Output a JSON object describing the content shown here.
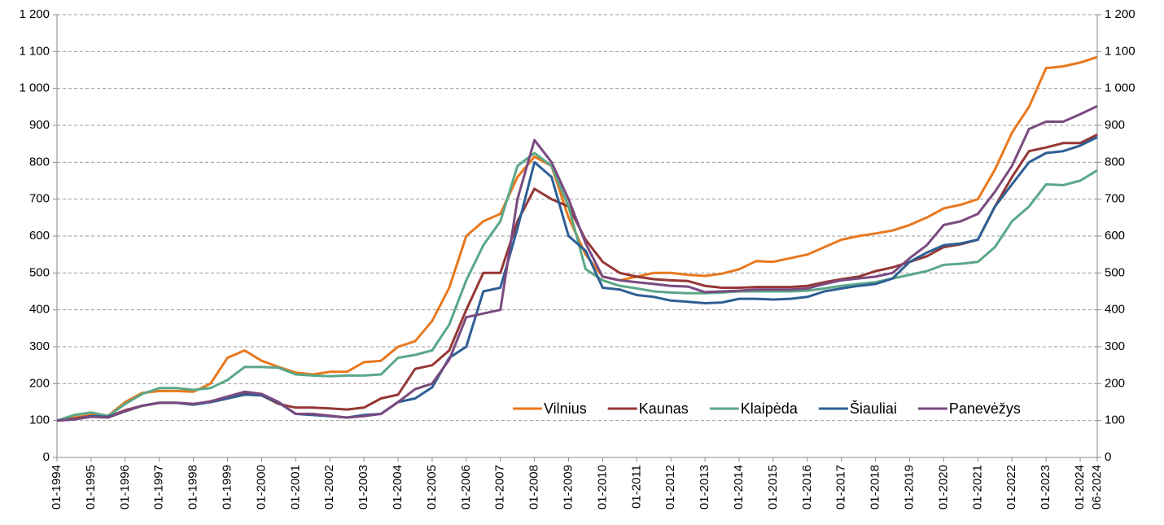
{
  "chart_data": {
    "type": "line",
    "categories": [
      "01-1994",
      null,
      "01-1995",
      null,
      "01-1996",
      null,
      "01-1997",
      null,
      "01-1998",
      null,
      "01-1999",
      null,
      "01-2000",
      null,
      "01-2001",
      null,
      "01-2002",
      null,
      "01-2003",
      null,
      "01-2004",
      null,
      "01-2005",
      null,
      "01-2006",
      null,
      "01-2007",
      null,
      "01-2008",
      null,
      "01-2009",
      null,
      "01-2010",
      null,
      "01-2011",
      null,
      "01-2012",
      null,
      "01-2013",
      null,
      "01-2014",
      null,
      "01-2015",
      null,
      "01-2016",
      null,
      "01-2017",
      null,
      "01-2018",
      null,
      "01-2019",
      null,
      "01-2020",
      null,
      "01-2021",
      null,
      "01-2022",
      null,
      "01-2023",
      null,
      "01-2024",
      "06-2024"
    ],
    "series": [
      {
        "name": "Vilnius",
        "color": "#e8781e",
        "values": [
          100,
          108,
          115,
          113,
          150,
          175,
          180,
          180,
          178,
          200,
          270,
          290,
          262,
          245,
          230,
          225,
          232,
          232,
          258,
          262,
          300,
          315,
          370,
          460,
          600,
          640,
          660,
          760,
          815,
          790,
          650,
          550,
          490,
          480,
          490,
          500,
          500,
          495,
          492,
          498,
          510,
          532,
          530,
          540,
          550,
          570,
          590,
          600,
          607,
          615,
          630,
          650,
          675,
          685,
          700,
          780,
          880,
          950,
          1055,
          1060,
          1070,
          1085
        ]
      },
      {
        "name": "Kaunas",
        "color": "#953735",
        "values": [
          100,
          105,
          112,
          110,
          128,
          140,
          148,
          148,
          145,
          150,
          160,
          172,
          168,
          145,
          135,
          135,
          133,
          130,
          135,
          160,
          170,
          240,
          250,
          290,
          400,
          500,
          500,
          640,
          728,
          700,
          680,
          590,
          530,
          500,
          490,
          483,
          480,
          478,
          465,
          460,
          460,
          462,
          462,
          462,
          465,
          475,
          483,
          490,
          505,
          515,
          530,
          545,
          570,
          578,
          590,
          680,
          760,
          830,
          840,
          852,
          852,
          875
        ]
      },
      {
        "name": "Klaipėda",
        "color": "#5aa887",
        "values": [
          100,
          115,
          122,
          112,
          145,
          172,
          188,
          188,
          183,
          188,
          210,
          245,
          245,
          243,
          225,
          222,
          220,
          222,
          222,
          225,
          270,
          278,
          290,
          360,
          480,
          575,
          640,
          790,
          825,
          790,
          680,
          510,
          480,
          465,
          458,
          450,
          447,
          445,
          445,
          447,
          450,
          450,
          450,
          450,
          452,
          458,
          465,
          470,
          475,
          485,
          495,
          505,
          522,
          525,
          530,
          570,
          640,
          680,
          740,
          738,
          750,
          778
        ]
      },
      {
        "name": "Šiauliai",
        "color": "#2e5f95",
        "values": [
          100,
          103,
          112,
          110,
          125,
          140,
          148,
          148,
          143,
          150,
          160,
          170,
          168,
          148,
          118,
          115,
          112,
          108,
          115,
          118,
          150,
          160,
          190,
          270,
          300,
          450,
          460,
          620,
          800,
          760,
          600,
          560,
          460,
          455,
          440,
          435,
          425,
          422,
          418,
          420,
          430,
          430,
          428,
          430,
          435,
          450,
          458,
          465,
          470,
          485,
          530,
          555,
          575,
          580,
          590,
          680,
          740,
          800,
          825,
          830,
          845,
          868
        ]
      },
      {
        "name": "Panevėžys",
        "color": "#7a4a80",
        "values": [
          100,
          103,
          110,
          108,
          125,
          140,
          148,
          148,
          145,
          152,
          165,
          178,
          172,
          150,
          118,
          118,
          113,
          108,
          112,
          118,
          150,
          185,
          200,
          265,
          380,
          390,
          400,
          700,
          860,
          800,
          700,
          580,
          490,
          480,
          475,
          470,
          465,
          463,
          448,
          450,
          452,
          455,
          455,
          455,
          458,
          470,
          480,
          485,
          490,
          500,
          540,
          575,
          630,
          640,
          660,
          720,
          790,
          890,
          910,
          910,
          930,
          952
        ]
      }
    ],
    "ylim": [
      0,
      1200
    ],
    "yticks": [
      0,
      100,
      200,
      300,
      400,
      500,
      600,
      700,
      800,
      900,
      {
        "value": 1000,
        "label": "1 000"
      },
      {
        "value": 1100,
        "label": "1 100"
      },
      {
        "value": 1200,
        "label": "1 200"
      }
    ],
    "grid": true,
    "legend": "lower right"
  }
}
